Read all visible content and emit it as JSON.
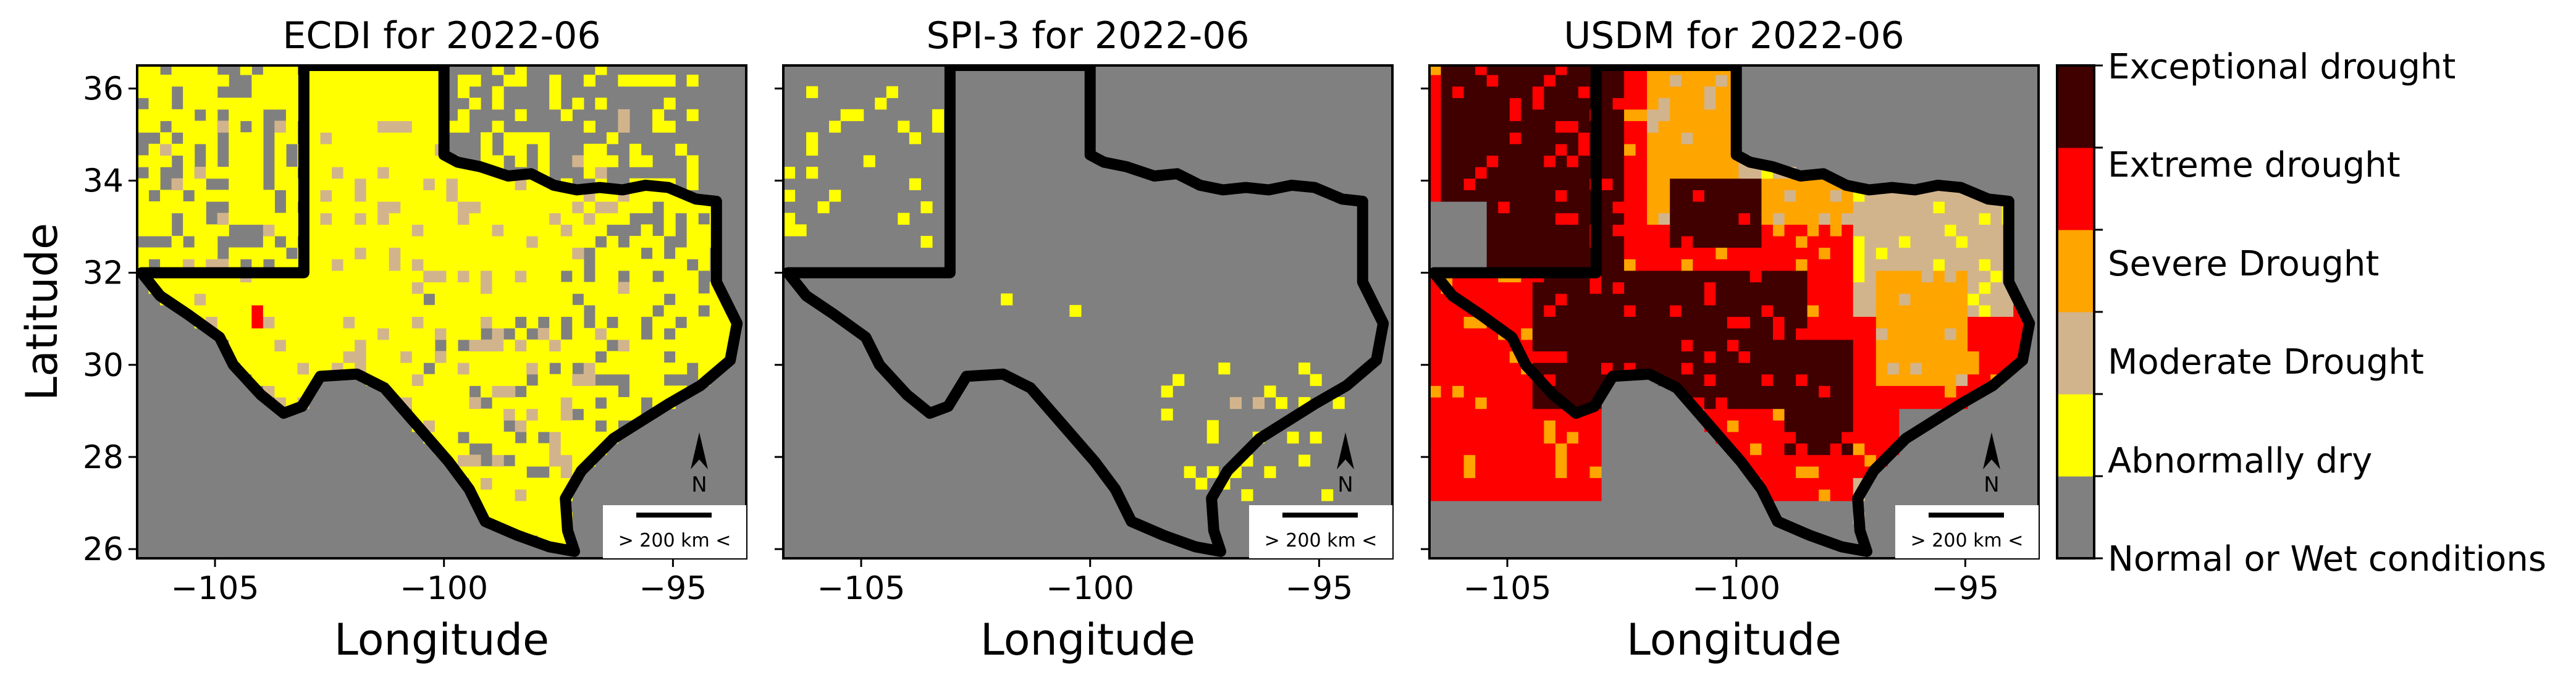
{
  "figure": {
    "ylabel": "Latitude",
    "xlabel": "Longitude",
    "scale_bar_label": "> 200 km <",
    "north_label": "N"
  },
  "colors": {
    "normal": "#808080",
    "abnormally_dry": "#ffff00",
    "moderate": "#d2b48c",
    "severe": "#ffa500",
    "extreme": "#ff0000",
    "exceptional": "#400000",
    "border": "#000000"
  },
  "colorbar": {
    "categories": [
      "Normal or Wet conditions",
      "Abnormally dry",
      "Moderate Drought",
      "Severe Drought",
      "Extreme drought",
      "Exceptional drought"
    ],
    "colors": [
      "#808080",
      "#ffff00",
      "#d2b48c",
      "#ffa500",
      "#ff0000",
      "#400000"
    ]
  },
  "chart_data": [
    {
      "type": "heatmap",
      "title": "ECDI for 2022-06",
      "xlabel": "Longitude",
      "ylabel": "Latitude",
      "xlim": [
        -106.7,
        -93.4
      ],
      "ylim": [
        25.8,
        36.5
      ],
      "xticks": [
        -105,
        -100,
        -95
      ],
      "yticks": [
        26,
        28,
        30,
        32,
        34,
        36
      ],
      "cell_deg": 0.25,
      "palette": [
        "#808080",
        "#ffff00",
        "#d2b48c",
        "#ffa500",
        "#ff0000",
        "#400000"
      ],
      "classes": [
        "Normal or Wet conditions",
        "Abnormally dry",
        "Moderate Drought",
        "Severe Drought",
        "Extreme drought",
        "Exceptional drought"
      ],
      "base_category": 1,
      "regions": [
        {
          "category": 1,
          "lon": [
            -106.7,
            -103.1
          ],
          "lat": [
            32.0,
            36.5
          ],
          "density": 0.75
        },
        {
          "category": 1,
          "lon": [
            -103.1,
            -100.0
          ],
          "lat": [
            32.0,
            36.5
          ],
          "density": 0.55
        },
        {
          "category": 1,
          "lon": [
            -100.0,
            -94.5
          ],
          "lat": [
            32.0,
            36.5
          ],
          "density": 0.25
        },
        {
          "category": 2,
          "lon": [
            -106.5,
            -96.0
          ],
          "lat": [
            27.0,
            35.5
          ],
          "density": 0.12
        },
        {
          "category": 3,
          "lon": [
            -103.5,
            -101.5
          ],
          "lat": [
            31.5,
            33.0
          ],
          "density": 0.02
        },
        {
          "category": 4,
          "lon": [
            -104.3,
            -104.0
          ],
          "lat": [
            30.9,
            31.2
          ],
          "density": 1.0
        }
      ],
      "inside_texas_sparse_gray": [
        {
          "lon": [
            -97.5,
            -93.5
          ],
          "lat": [
            28.5,
            33.5
          ],
          "density": 0.22
        },
        {
          "lon": [
            -100.5,
            -97.0
          ],
          "lat": [
            27.0,
            31.5
          ],
          "density": 0.12
        }
      ],
      "scale_bar": "> 200 km <",
      "north_arrow": "N"
    },
    {
      "type": "heatmap",
      "title": "SPI-3 for 2022-06",
      "xlabel": "Longitude",
      "xlim": [
        -106.7,
        -93.4
      ],
      "ylim": [
        25.8,
        36.5
      ],
      "xticks": [
        -105,
        -100,
        -95
      ],
      "yticks": [
        26,
        28,
        30,
        32,
        34,
        36
      ],
      "cell_deg": 0.25,
      "palette": [
        "#808080",
        "#ffff00",
        "#d2b48c",
        "#ffa500",
        "#ff0000",
        "#400000"
      ],
      "classes": [
        "Normal or Wet conditions",
        "Abnormally dry",
        "Moderate Drought",
        "Severe Drought",
        "Extreme drought",
        "Exceptional drought"
      ],
      "base_category": 0,
      "regions": [
        {
          "category": 1,
          "lon": [
            -106.7,
            -103.1
          ],
          "lat": [
            32.5,
            36.5
          ],
          "density": 0.1
        },
        {
          "category": 1,
          "lon": [
            -98.5,
            -94.5
          ],
          "lat": [
            27.0,
            30.0
          ],
          "density": 0.1
        },
        {
          "category": 2,
          "lon": [
            -97.5,
            -96.0
          ],
          "lat": [
            29.0,
            29.8
          ],
          "density": 0.15
        },
        {
          "category": 1,
          "lon": [
            -102.0,
            -100.0
          ],
          "lat": [
            31.0,
            31.5
          ],
          "density": 0.05
        }
      ],
      "scale_bar": "> 200 km <",
      "north_arrow": "N"
    },
    {
      "type": "heatmap",
      "title": "USDM for 2022-06",
      "xlabel": "Longitude",
      "xlim": [
        -106.7,
        -93.4
      ],
      "ylim": [
        25.8,
        36.5
      ],
      "xticks": [
        -105,
        -100,
        -95
      ],
      "yticks": [
        26,
        28,
        30,
        32,
        34,
        36
      ],
      "cell_deg": 0.25,
      "palette": [
        "#808080",
        "#ffff00",
        "#d2b48c",
        "#ffa500",
        "#ff0000",
        "#400000"
      ],
      "classes": [
        "Normal or Wet conditions",
        "Abnormally dry",
        "Moderate Drought",
        "Severe Drought",
        "Extreme drought",
        "Exceptional drought"
      ],
      "base_category": 0,
      "regions": [
        {
          "category": 4,
          "lon": [
            -106.7,
            -93.7
          ],
          "lat": [
            27.0,
            36.5
          ],
          "density": 1.0
        },
        {
          "category": 3,
          "lon": [
            -102.0,
            -97.0
          ],
          "lat": [
            33.0,
            36.5
          ],
          "density": 1.0
        },
        {
          "category": 2,
          "lon": [
            -100.0,
            -98.0
          ],
          "lat": [
            34.0,
            36.5
          ],
          "density": 1.0
        },
        {
          "category": 1,
          "lon": [
            -98.0,
            -96.5
          ],
          "lat": [
            35.0,
            36.5
          ],
          "density": 1.0
        },
        {
          "category": 2,
          "lon": [
            -97.5,
            -94.0
          ],
          "lat": [
            31.0,
            34.0
          ],
          "density": 1.0
        },
        {
          "category": 3,
          "lon": [
            -97.0,
            -95.0
          ],
          "lat": [
            29.5,
            32.0
          ],
          "density": 1.0
        },
        {
          "category": 5,
          "lon": [
            -106.5,
            -102.5
          ],
          "lat": [
            32.0,
            36.5
          ],
          "density": 1.0
        },
        {
          "category": 5,
          "lon": [
            -104.5,
            -98.5
          ],
          "lat": [
            29.0,
            32.0
          ],
          "density": 1.0
        },
        {
          "category": 5,
          "lon": [
            -101.5,
            -99.5
          ],
          "lat": [
            32.5,
            34.0
          ],
          "density": 1.0
        },
        {
          "category": 5,
          "lon": [
            -99.0,
            -97.5
          ],
          "lat": [
            28.0,
            30.5
          ],
          "density": 1.0
        },
        {
          "category": 2,
          "lon": [
            -97.5,
            -96.5
          ],
          "lat": [
            26.5,
            27.5
          ],
          "density": 1.0
        }
      ],
      "gray_inside": [
        {
          "lon": [
            -96.5,
            -93.4
          ],
          "lat": [
            25.8,
            29.0
          ]
        },
        {
          "lon": [
            -106.7,
            -105.5
          ],
          "lat": [
            32.0,
            33.5
          ]
        }
      ],
      "scale_bar": "> 200 km <",
      "north_arrow": "N"
    }
  ]
}
